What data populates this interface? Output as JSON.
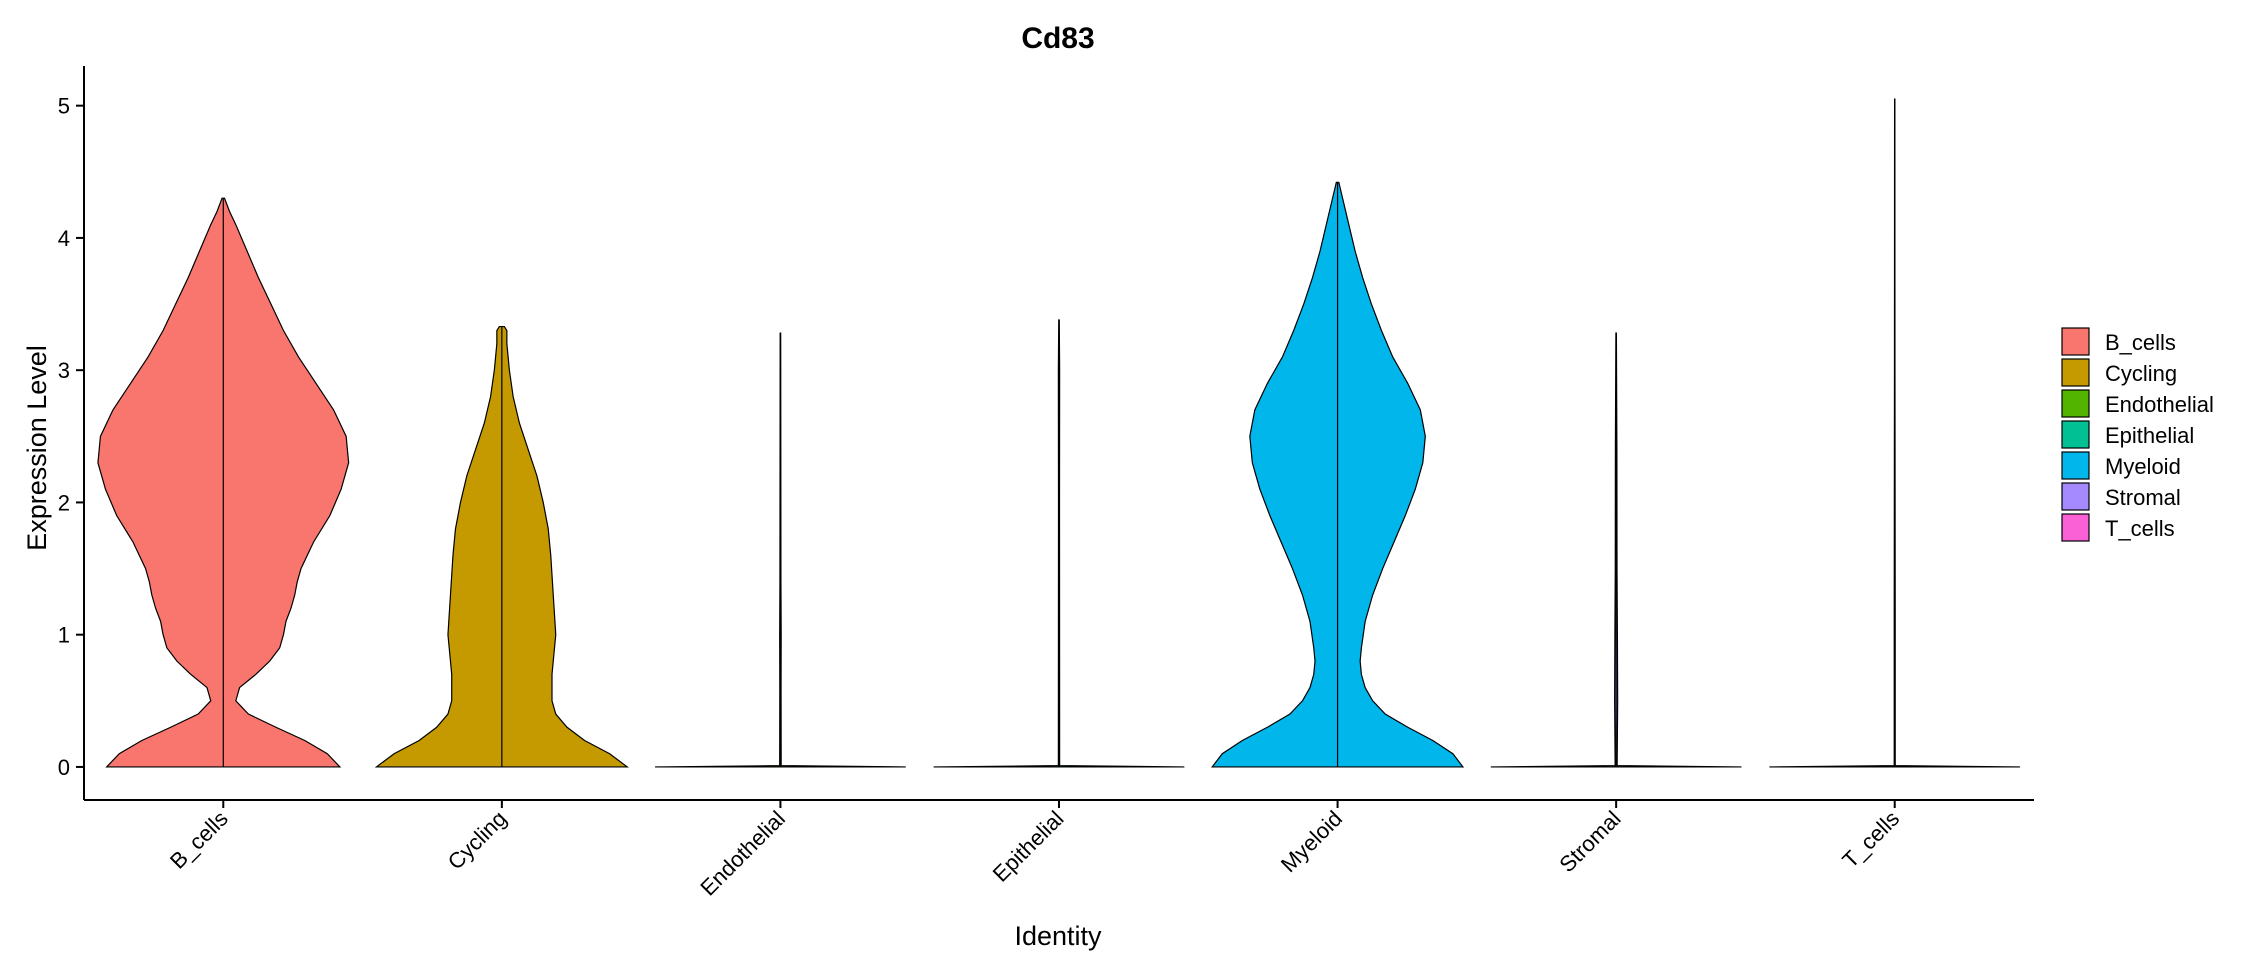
{
  "chart_data": {
    "type": "violin",
    "title": "Cd83",
    "xlabel": "Identity",
    "ylabel": "Expression Level",
    "ylim": [
      -0.25,
      5.3
    ],
    "yticks": [
      0,
      1,
      2,
      3,
      4,
      5
    ],
    "legend_position": "right",
    "grid": false,
    "categories": [
      "B_cells",
      "Cycling",
      "Endothelial",
      "Epithelial",
      "Myeloid",
      "Stromal",
      "T_cells"
    ],
    "series": [
      {
        "name": "B_cells",
        "color": "#F8766D",
        "max": 4.3,
        "profile": [
          [
            0,
            0.93
          ],
          [
            0.1,
            0.83
          ],
          [
            0.2,
            0.65
          ],
          [
            0.3,
            0.42
          ],
          [
            0.4,
            0.2
          ],
          [
            0.5,
            0.1
          ],
          [
            0.6,
            0.13
          ],
          [
            0.7,
            0.26
          ],
          [
            0.8,
            0.37
          ],
          [
            0.9,
            0.45
          ],
          [
            1.0,
            0.48
          ],
          [
            1.1,
            0.5
          ],
          [
            1.2,
            0.54
          ],
          [
            1.3,
            0.57
          ],
          [
            1.4,
            0.59
          ],
          [
            1.5,
            0.62
          ],
          [
            1.7,
            0.72
          ],
          [
            1.9,
            0.85
          ],
          [
            2.1,
            0.94
          ],
          [
            2.3,
            1.0
          ],
          [
            2.5,
            0.98
          ],
          [
            2.7,
            0.88
          ],
          [
            2.9,
            0.74
          ],
          [
            3.1,
            0.6
          ],
          [
            3.3,
            0.48
          ],
          [
            3.5,
            0.38
          ],
          [
            3.7,
            0.28
          ],
          [
            3.9,
            0.19
          ],
          [
            4.1,
            0.1
          ],
          [
            4.2,
            0.05
          ],
          [
            4.3,
            0.01
          ]
        ]
      },
      {
        "name": "Cycling",
        "color": "#C49A00",
        "max": 3.33,
        "profile": [
          [
            0,
            1.0
          ],
          [
            0.1,
            0.86
          ],
          [
            0.2,
            0.66
          ],
          [
            0.3,
            0.52
          ],
          [
            0.4,
            0.43
          ],
          [
            0.5,
            0.4
          ],
          [
            0.7,
            0.4
          ],
          [
            1.0,
            0.43
          ],
          [
            1.3,
            0.41
          ],
          [
            1.6,
            0.39
          ],
          [
            1.8,
            0.37
          ],
          [
            2.0,
            0.33
          ],
          [
            2.2,
            0.28
          ],
          [
            2.4,
            0.21
          ],
          [
            2.6,
            0.14
          ],
          [
            2.8,
            0.09
          ],
          [
            3.0,
            0.06
          ],
          [
            3.2,
            0.04
          ],
          [
            3.3,
            0.04
          ],
          [
            3.33,
            0.02
          ]
        ]
      },
      {
        "name": "Endothelial",
        "color": "#53B400",
        "max": 3.28,
        "profile": [
          [
            0,
            1.0
          ],
          [
            0.01,
            0.006
          ],
          [
            0.6,
            0.005
          ],
          [
            1.0,
            0.006
          ],
          [
            1.4,
            0.004
          ],
          [
            3.28,
            0.002
          ]
        ]
      },
      {
        "name": "Epithelial",
        "color": "#00C094",
        "max": 3.38,
        "profile": [
          [
            0,
            1.0
          ],
          [
            0.01,
            0.005
          ],
          [
            2.0,
            0.004
          ],
          [
            3.0,
            0.005
          ],
          [
            3.38,
            0.002
          ]
        ]
      },
      {
        "name": "Myeloid",
        "color": "#00B6EB",
        "max": 4.42,
        "profile": [
          [
            0,
            1.0
          ],
          [
            0.1,
            0.92
          ],
          [
            0.2,
            0.76
          ],
          [
            0.3,
            0.56
          ],
          [
            0.4,
            0.38
          ],
          [
            0.5,
            0.28
          ],
          [
            0.6,
            0.22
          ],
          [
            0.7,
            0.19
          ],
          [
            0.8,
            0.18
          ],
          [
            0.9,
            0.19
          ],
          [
            1.1,
            0.22
          ],
          [
            1.3,
            0.28
          ],
          [
            1.5,
            0.36
          ],
          [
            1.7,
            0.45
          ],
          [
            1.9,
            0.54
          ],
          [
            2.1,
            0.62
          ],
          [
            2.3,
            0.68
          ],
          [
            2.5,
            0.7
          ],
          [
            2.7,
            0.66
          ],
          [
            2.9,
            0.56
          ],
          [
            3.1,
            0.44
          ],
          [
            3.3,
            0.35
          ],
          [
            3.5,
            0.27
          ],
          [
            3.7,
            0.2
          ],
          [
            3.9,
            0.14
          ],
          [
            4.1,
            0.09
          ],
          [
            4.3,
            0.04
          ],
          [
            4.42,
            0.01
          ]
        ]
      },
      {
        "name": "Stromal",
        "color": "#A58AFF",
        "max": 3.28,
        "profile": [
          [
            0,
            1.0
          ],
          [
            0.01,
            0.008
          ],
          [
            0.5,
            0.012
          ],
          [
            1.0,
            0.01
          ],
          [
            1.5,
            0.007
          ],
          [
            2.4,
            0.006
          ],
          [
            3.28,
            0.002
          ]
        ]
      },
      {
        "name": "T_cells",
        "color": "#FB61D7",
        "max": 5.05,
        "profile": [
          [
            0,
            1.0
          ],
          [
            0.01,
            0.004
          ],
          [
            1.1,
            0.004
          ],
          [
            3.0,
            0.002
          ],
          [
            5.05,
            0.001
          ]
        ]
      }
    ]
  }
}
